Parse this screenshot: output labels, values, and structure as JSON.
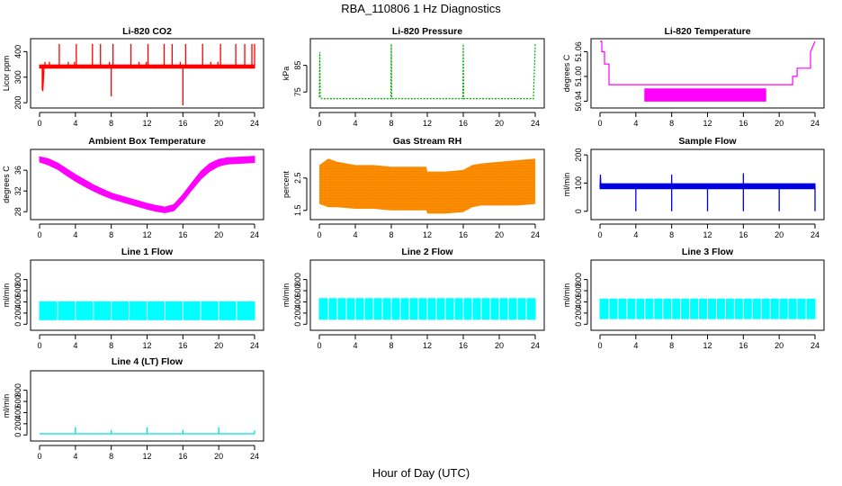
{
  "title": "RBA_110806  1 Hz Diagnostics",
  "xlabel": "Hour of Day (UTC)",
  "chart_data": [
    {
      "type": "line",
      "title": "Li-820 CO2",
      "ylabel": "Licor ppm",
      "color": "#ff0000",
      "xlim": [
        0,
        24
      ],
      "ylim": [
        190,
        440
      ],
      "xticks": [
        0,
        4,
        8,
        12,
        16,
        20,
        24
      ],
      "yticks": [
        200,
        300,
        400
      ],
      "ytick_labels": [
        "200",
        "300",
        "400"
      ],
      "band": {
        "x": [
          0,
          24
        ],
        "low": [
          335,
          335
        ],
        "high": [
          348,
          348
        ]
      },
      "series": [
        {
          "x": [
            0,
            0.2,
            0.35,
            0.36,
            0.5,
            24
          ],
          "y": [
            335,
            345,
            340,
            245,
            340,
            345
          ]
        }
      ],
      "spikes": [
        {
          "x": 0.3,
          "y": 250
        },
        {
          "x": 0.6,
          "y": 360
        },
        {
          "x": 1.1,
          "y": 360
        },
        {
          "x": 2.2,
          "y": 430
        },
        {
          "x": 3.2,
          "y": 360
        },
        {
          "x": 3.9,
          "y": 360
        },
        {
          "x": 4.1,
          "y": 430
        },
        {
          "x": 5.9,
          "y": 430
        },
        {
          "x": 6.8,
          "y": 430
        },
        {
          "x": 7.8,
          "y": 360
        },
        {
          "x": 8.0,
          "y": 225
        },
        {
          "x": 8.2,
          "y": 430
        },
        {
          "x": 10.2,
          "y": 430
        },
        {
          "x": 11.1,
          "y": 360
        },
        {
          "x": 11.9,
          "y": 360
        },
        {
          "x": 12.1,
          "y": 430
        },
        {
          "x": 13.9,
          "y": 430
        },
        {
          "x": 14.8,
          "y": 430
        },
        {
          "x": 15.7,
          "y": 360
        },
        {
          "x": 16.0,
          "y": 190
        },
        {
          "x": 16.3,
          "y": 430
        },
        {
          "x": 18.2,
          "y": 430
        },
        {
          "x": 19.1,
          "y": 360
        },
        {
          "x": 19.9,
          "y": 360
        },
        {
          "x": 20.2,
          "y": 430
        },
        {
          "x": 21.9,
          "y": 430
        },
        {
          "x": 22.9,
          "y": 430
        },
        {
          "x": 23.7,
          "y": 430
        },
        {
          "x": 24.0,
          "y": 430
        }
      ]
    },
    {
      "type": "line",
      "title": "Li-820 Pressure",
      "ylabel": "kPa",
      "color": "#00aa00",
      "xlim": [
        0,
        24
      ],
      "ylim": [
        70,
        94
      ],
      "xticks": [
        0,
        4,
        8,
        12,
        16,
        20,
        24
      ],
      "yticks": [
        75,
        85
      ],
      "ytick_labels": [
        "75",
        "85"
      ],
      "dashed": true,
      "series": [
        {
          "x": [
            0,
            0.05,
            0.1,
            0.3,
            7.95,
            8.0,
            8.05,
            15.95,
            16.0,
            16.05,
            23.8,
            24.0
          ],
          "y": [
            73,
            90,
            73,
            72.5,
            72.5,
            93,
            72.5,
            72.5,
            93,
            72.5,
            72.5,
            93
          ]
        }
      ]
    },
    {
      "type": "line",
      "title": "Li-820 Temperature",
      "ylabel": "degrees C",
      "color": "#ff00ff",
      "xlim": [
        0,
        24
      ],
      "ylim": [
        50.93,
        51.085
      ],
      "xticks": [
        0,
        4,
        8,
        12,
        16,
        20,
        24
      ],
      "yticks": [
        50.94,
        51.0,
        51.06
      ],
      "ytick_labels": [
        "50.94",
        "51.00",
        "51.06"
      ],
      "band": {
        "x": [
          5,
          18.5
        ],
        "low": [
          50.94,
          50.94
        ],
        "high": [
          50.97,
          50.97
        ]
      },
      "series": [
        {
          "x": [
            0,
            0.2,
            0.2,
            0.5,
            0.5,
            1.0,
            1.0,
            21.5,
            21.5,
            22.0,
            22.0,
            23.5,
            23.5,
            24
          ],
          "y": [
            51.085,
            51.085,
            51.06,
            51.06,
            51.03,
            51.03,
            50.98,
            50.98,
            51.0,
            51.0,
            51.02,
            51.02,
            51.06,
            51.085
          ]
        }
      ]
    },
    {
      "type": "area",
      "title": "Ambient Box Temperature",
      "ylabel": "degrees C",
      "color": "#ff00ff",
      "xlim": [
        0,
        24
      ],
      "ylim": [
        27,
        39.5
      ],
      "xticks": [
        0,
        4,
        8,
        12,
        16,
        20,
        24
      ],
      "yticks": [
        28,
        32,
        36
      ],
      "ytick_labels": [
        "28",
        "32",
        "36"
      ],
      "band": {
        "x": [
          0,
          1,
          2,
          3,
          4,
          5,
          6,
          7,
          8,
          9,
          10,
          11,
          12,
          13,
          14,
          15,
          16,
          17,
          18,
          19,
          20,
          21,
          22,
          23,
          24
        ],
        "low": [
          37.6,
          37.0,
          36.2,
          35.0,
          33.9,
          32.9,
          32.0,
          31.2,
          30.5,
          30.0,
          29.5,
          29.0,
          28.5,
          28.1,
          27.8,
          28.2,
          30.0,
          32.2,
          34.3,
          35.8,
          36.8,
          37.2,
          37.3,
          37.4,
          37.5
        ],
        "high": [
          38.6,
          38.2,
          37.4,
          36.3,
          35.2,
          34.2,
          33.2,
          32.4,
          31.6,
          31.1,
          30.6,
          30.1,
          29.6,
          29.2,
          28.9,
          29.4,
          31.3,
          33.6,
          35.8,
          37.3,
          38.1,
          38.4,
          38.5,
          38.6,
          38.7
        ]
      }
    },
    {
      "type": "area",
      "title": "Gas Stream RH",
      "ylabel": "percent",
      "color": "#ff8c00",
      "color2": "#7a6a00",
      "xlim": [
        0,
        24
      ],
      "ylim": [
        1.3,
        3.3
      ],
      "xticks": [
        0,
        4,
        8,
        12,
        16,
        20,
        24
      ],
      "yticks": [
        1.5,
        2.5
      ],
      "ytick_labels": [
        "1.5",
        "2.5"
      ],
      "band": {
        "x": [
          0,
          1,
          2,
          4,
          6,
          8,
          10,
          11.9,
          12,
          14,
          16,
          17,
          18,
          20,
          22,
          24
        ],
        "low": [
          1.7,
          1.6,
          1.6,
          1.55,
          1.55,
          1.5,
          1.5,
          1.5,
          1.4,
          1.4,
          1.45,
          1.6,
          1.65,
          1.65,
          1.65,
          1.7
        ],
        "high": [
          2.9,
          3.1,
          3.0,
          2.9,
          2.9,
          2.85,
          2.85,
          2.85,
          2.7,
          2.7,
          2.75,
          2.9,
          2.95,
          3.0,
          3.05,
          3.1
        ]
      }
    },
    {
      "type": "line",
      "title": "Sample Flow",
      "ylabel": "ml/min",
      "color": "#0000dd",
      "xlim": [
        0,
        24
      ],
      "ylim": [
        -20,
        210
      ],
      "xticks": [
        0,
        4,
        8,
        12,
        16,
        20,
        24
      ],
      "yticks": [
        0,
        100,
        200
      ],
      "ytick_labels": [
        "0",
        "100",
        "200"
      ],
      "band": {
        "x": [
          0,
          24
        ],
        "low": [
          80,
          80
        ],
        "high": [
          98,
          98
        ]
      },
      "series": [
        {
          "x": [
            0,
            0.05,
            0.1,
            0.2,
            24
          ],
          "y": [
            90,
            130,
            90,
            95,
            90
          ]
        }
      ],
      "spikes": [
        {
          "x": 4,
          "y": 0
        },
        {
          "x": 8,
          "y": 0
        },
        {
          "x": 12,
          "y": 0
        },
        {
          "x": 16,
          "y": 0
        },
        {
          "x": 20,
          "y": 0
        },
        {
          "x": 24,
          "y": 0
        },
        {
          "x": 8,
          "y": 130
        },
        {
          "x": 16,
          "y": 135
        }
      ]
    },
    {
      "type": "area",
      "title": "Line 1 Flow",
      "ylabel": "ml/min",
      "color": "#00ffff",
      "xlim": [
        0,
        24
      ],
      "ylim": [
        -60,
        1100
      ],
      "xticks": [
        0,
        4,
        8,
        12,
        16,
        20,
        24
      ],
      "yticks": [
        0,
        200,
        400,
        600,
        800
      ],
      "ytick_labels": [
        "0",
        "200",
        "400",
        "600",
        "800"
      ],
      "band": {
        "x": [
          0,
          24
        ],
        "low": [
          80,
          80
        ],
        "high": [
          400,
          400
        ]
      },
      "dividers": [
        2,
        4,
        6,
        8,
        10,
        12,
        14,
        16,
        18,
        20,
        22
      ]
    },
    {
      "type": "area",
      "title": "Line 2 Flow",
      "ylabel": "ml/min",
      "color": "#00ffff",
      "xlim": [
        0,
        24
      ],
      "ylim": [
        -60,
        1100
      ],
      "xticks": [
        0,
        4,
        8,
        12,
        16,
        20,
        24
      ],
      "yticks": [
        0,
        200,
        400,
        600,
        800
      ],
      "ytick_labels": [
        "0",
        "200",
        "400",
        "600",
        "800"
      ],
      "band": {
        "x": [
          0,
          24
        ],
        "low": [
          90,
          90
        ],
        "high": [
          460,
          460
        ]
      },
      "dividers": [
        1,
        2,
        3,
        4,
        5,
        6,
        7,
        8,
        9,
        10,
        11,
        12,
        13,
        14,
        15,
        16,
        17,
        18,
        19,
        20,
        21,
        22,
        23
      ]
    },
    {
      "type": "area",
      "title": "Line 3 Flow",
      "ylabel": "ml/min",
      "color": "#00ffff",
      "xlim": [
        0,
        24
      ],
      "ylim": [
        -60,
        1100
      ],
      "xticks": [
        0,
        4,
        8,
        12,
        16,
        20,
        24
      ],
      "yticks": [
        0,
        200,
        400,
        600,
        800
      ],
      "ytick_labels": [
        "0",
        "200",
        "400",
        "600",
        "800"
      ],
      "band": {
        "x": [
          0,
          24
        ],
        "low": [
          100,
          100
        ],
        "high": [
          450,
          450
        ]
      },
      "dividers": [
        1,
        2,
        3,
        4,
        5,
        6,
        7,
        8,
        9,
        10,
        11,
        12,
        13,
        14,
        15,
        16,
        17,
        18,
        19,
        20,
        21,
        22,
        23
      ]
    },
    {
      "type": "line",
      "title": "Line 4 (LT) Flow",
      "ylabel": "ml/min",
      "color": "#00dddd",
      "xlim": [
        0,
        24
      ],
      "ylim": [
        -60,
        1100
      ],
      "xticks": [
        0,
        4,
        8,
        12,
        16,
        20,
        24
      ],
      "yticks": [
        0,
        200,
        400,
        600,
        800
      ],
      "ytick_labels": [
        "0",
        "200",
        "400",
        "600",
        "800"
      ],
      "series": [
        {
          "x": [
            0,
            24
          ],
          "y": [
            20,
            20
          ]
        }
      ],
      "spikes": [
        {
          "x": 4,
          "y": 140
        },
        {
          "x": 8,
          "y": 90
        },
        {
          "x": 12,
          "y": 140
        },
        {
          "x": 16,
          "y": 90
        },
        {
          "x": 20,
          "y": 140
        },
        {
          "x": 24,
          "y": 80
        }
      ]
    }
  ]
}
